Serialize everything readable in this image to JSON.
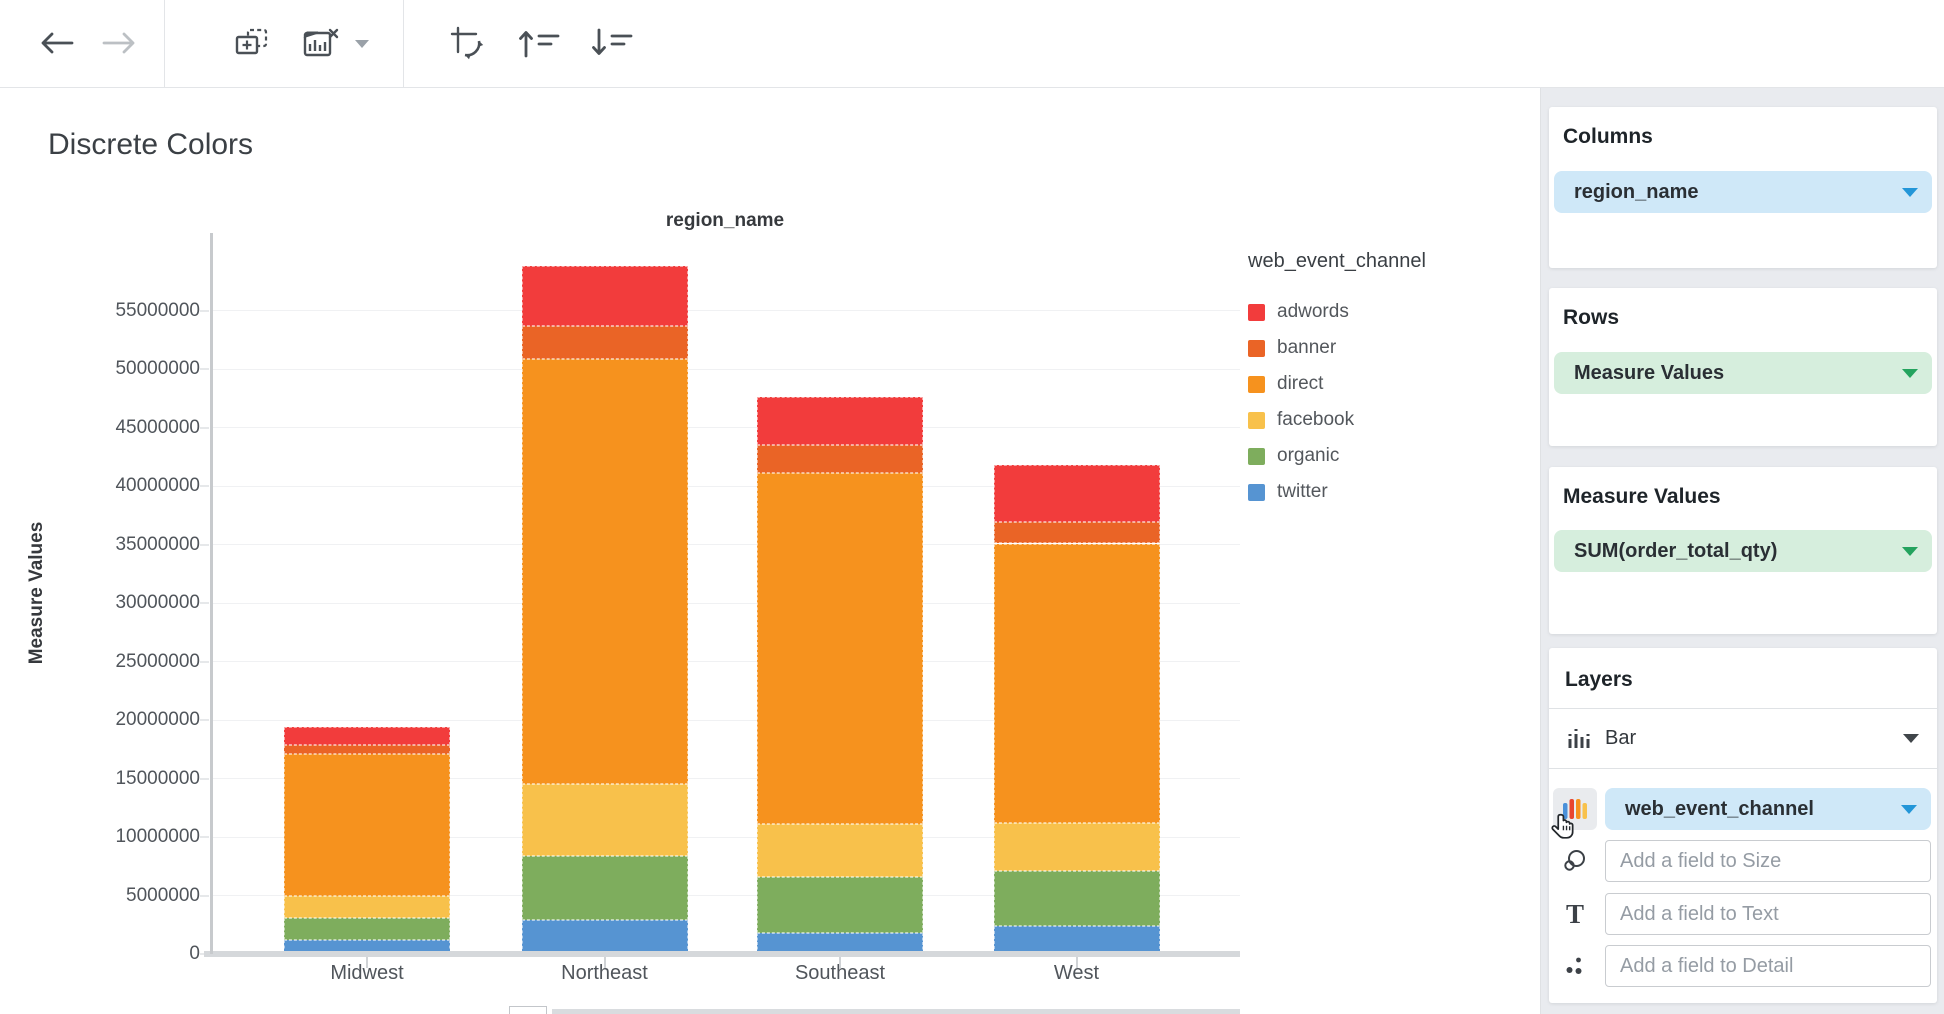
{
  "toolbar": {
    "icon_names": [
      "back-arrow",
      "forward-arrow",
      "add-chart",
      "remove-chart",
      "remove-chart-caret",
      "swap-axes",
      "sort-ascending",
      "sort-descending"
    ]
  },
  "canvas": {
    "title": "Discrete Colors"
  },
  "chart_data": {
    "type": "bar",
    "stacked": true,
    "title": "region_name",
    "xlabel": "region_name",
    "ylabel": "Measure Values",
    "categories": [
      "Midwest",
      "Northeast",
      "Southeast",
      "West"
    ],
    "series": [
      {
        "name": "adwords",
        "color": "#f23c3c",
        "values": [
          1500000,
          5100000,
          4100000,
          4900000
        ]
      },
      {
        "name": "banner",
        "color": "#ea6426",
        "values": [
          800000,
          2800000,
          2400000,
          1800000
        ]
      },
      {
        "name": "direct",
        "color": "#f6921e",
        "values": [
          12100000,
          36400000,
          30000000,
          23900000
        ]
      },
      {
        "name": "facebook",
        "color": "#f8c14b",
        "values": [
          1900000,
          6100000,
          4500000,
          4100000
        ]
      },
      {
        "name": "organic",
        "color": "#7ead5d",
        "values": [
          1900000,
          5500000,
          4800000,
          4700000
        ]
      },
      {
        "name": "twitter",
        "color": "#5694d2",
        "values": [
          1200000,
          2900000,
          1800000,
          2400000
        ]
      }
    ],
    "stack_order": [
      "twitter",
      "organic",
      "facebook",
      "direct",
      "banner",
      "adwords"
    ],
    "legend_title": "web_event_channel",
    "legend_position": "right",
    "y_ticks": [
      0,
      5000000,
      10000000,
      15000000,
      20000000,
      25000000,
      30000000,
      35000000,
      40000000,
      45000000,
      50000000,
      55000000
    ],
    "ylim": [
      0,
      61650000
    ],
    "grid": true
  },
  "sidebar": {
    "columns": {
      "label": "Columns",
      "pill": "region_name"
    },
    "rows": {
      "label": "Rows",
      "pill": "Measure Values"
    },
    "measure_values": {
      "label": "Measure Values",
      "pill": "SUM(order_total_qty)"
    },
    "layers": {
      "label": "Layers",
      "layer_type": "Bar",
      "color_field": "web_event_channel",
      "size_placeholder": "Add a field to Size",
      "text_placeholder": "Add a field to Text",
      "detail_placeholder": "Add a field to Detail"
    }
  },
  "colors": {
    "pill_blue_bg": "#cfe8f8",
    "pill_green_bg": "#d6eedd",
    "caret_blue": "#2396d8",
    "caret_green": "#24a35e",
    "sidebar_bg": "#e9ebef"
  }
}
